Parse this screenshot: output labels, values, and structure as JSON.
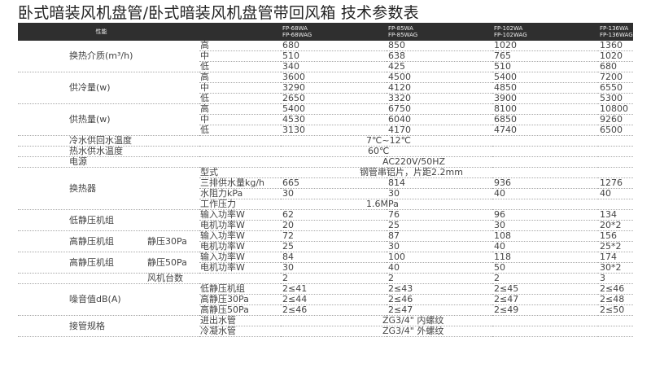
{
  "title": "卧式暗装风机盘管/卧式暗装风机盘管带回风箱 技术参数表",
  "header": {
    "performance": "性能",
    "models": [
      "FP-68WA\nFP-68WAG",
      "FP-85WA\nFP-85WAG",
      "FP-102WA\nFP-102WAG",
      "FP-136WA\nFP-136WAG"
    ]
  },
  "sections": [
    {
      "label": "换热介质(m³/h)",
      "rows": [
        {
          "item": "高",
          "values": [
            "680",
            "850",
            "1020",
            "1360"
          ]
        },
        {
          "item": "中",
          "values": [
            "510",
            "638",
            "765",
            "1020"
          ]
        },
        {
          "item": "低",
          "values": [
            "340",
            "425",
            "510",
            "680"
          ]
        }
      ]
    },
    {
      "label": "供冷量(w)",
      "rows": [
        {
          "item": "高",
          "values": [
            "3600",
            "4500",
            "5400",
            "7200"
          ]
        },
        {
          "item": "中",
          "values": [
            "3290",
            "4120",
            "4850",
            "6550"
          ]
        },
        {
          "item": "低",
          "values": [
            "2650",
            "3320",
            "3900",
            "5300"
          ]
        }
      ]
    },
    {
      "label": "供热量(w)",
      "rows": [
        {
          "item": "高",
          "values": [
            "5400",
            "6750",
            "8100",
            "10800"
          ]
        },
        {
          "item": "中",
          "values": [
            "4530",
            "6040",
            "6850",
            "9260"
          ]
        },
        {
          "item": "低",
          "values": [
            "3130",
            "4170",
            "4740",
            "6500"
          ]
        }
      ]
    },
    {
      "label": "冷水供回水温度",
      "merged": "7℃~12℃"
    },
    {
      "label": "热水供水温度",
      "merged": "60℃"
    },
    {
      "label": "电源",
      "merged": "AC220V/50HZ"
    },
    {
      "label": "换热器",
      "rows": [
        {
          "item": "型式",
          "merged": "钢管串铝片，片距2.2mm"
        },
        {
          "item": "三排供水量kg/h",
          "values": [
            "665",
            "814",
            "936",
            "1276"
          ]
        },
        {
          "item": "水阻力kPa",
          "values": [
            "30",
            "30",
            "40",
            "40"
          ]
        },
        {
          "item": "工作压力",
          "merged": "1.6MPa"
        }
      ]
    },
    {
      "label": "低静压机组",
      "rows": [
        {
          "item": "输入功率W",
          "values": [
            "62",
            "76",
            "96",
            "134"
          ]
        },
        {
          "item": "电机功率W",
          "values": [
            "20",
            "25",
            "30",
            "20*2"
          ]
        }
      ]
    },
    {
      "label": "高静压机组",
      "sub": "静压30Pa",
      "rows": [
        {
          "item": "输入功率W",
          "values": [
            "72",
            "87",
            "108",
            "156"
          ]
        },
        {
          "item": "电机功率W",
          "values": [
            "25",
            "30",
            "40",
            "25*2"
          ]
        }
      ]
    },
    {
      "label": "高静压机组",
      "sub": "静压50Pa",
      "rows": [
        {
          "item": "输入功率W",
          "values": [
            "84",
            "100",
            "118",
            "174"
          ]
        },
        {
          "item": "电机功率W",
          "values": [
            "30",
            "40",
            "50",
            "30*2"
          ]
        }
      ]
    },
    {
      "label": "",
      "sub": "风机台数",
      "rows": [
        {
          "item": "",
          "values": [
            "2",
            "2",
            "2",
            "3"
          ]
        }
      ]
    },
    {
      "label": "噪音值dB(A)",
      "rows": [
        {
          "item": "低静压机组",
          "values": [
            "2≤41",
            "2≤43",
            "2≤45",
            "2≤46"
          ]
        },
        {
          "item": "高静压30Pa",
          "values": [
            "2≤44",
            "2≤46",
            "2≤47",
            "2≤48"
          ]
        },
        {
          "item": "高静压50Pa",
          "values": [
            "2≤46",
            "2≤47",
            "2≤49",
            "2≤50"
          ]
        }
      ]
    },
    {
      "label": "接管规格",
      "rows": [
        {
          "item": "进出水管",
          "merged": "ZG3/4\" 内螺纹"
        },
        {
          "item": "冷凝水管",
          "merged": "ZG3/4\" 外螺纹"
        }
      ]
    }
  ]
}
